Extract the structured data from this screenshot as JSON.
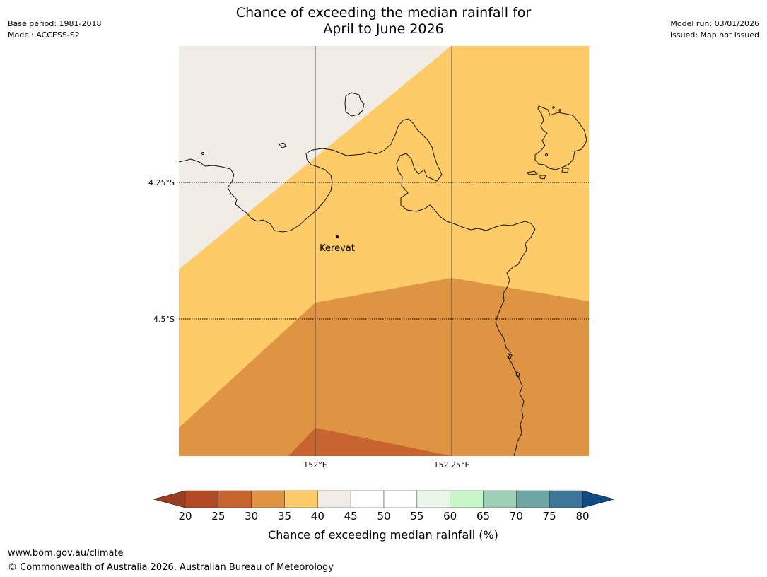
{
  "title": {
    "line1": "Chance of exceeding the median rainfall for",
    "line2": "April to June 2026"
  },
  "meta_left": {
    "base_period": "Base period: 1981-2018",
    "model": "Model: ACCESS-S2"
  },
  "meta_right": {
    "model_run": "Model run: 03/01/2026",
    "issued": "Issued: Map not issued"
  },
  "map": {
    "lat_labels": [
      "4.25°S",
      "4.5°S"
    ],
    "lon_labels": [
      "152°E",
      "152.25°E"
    ],
    "place_label": "Kerevat",
    "zone_colors": {
      "c25_30": "#c8642f",
      "c30_35": "#df9444",
      "c35_40": "#fdcb68",
      "c40_45": "#f1ece6"
    }
  },
  "colorbar": {
    "ticks": [
      "20",
      "25",
      "30",
      "35",
      "40",
      "45",
      "50",
      "55",
      "60",
      "65",
      "70",
      "75",
      "80"
    ],
    "under_color": "#9b3d21",
    "over_color": "#0f4c86",
    "bin_colors": [
      "#b14a24",
      "#c8642f",
      "#df9444",
      "#fdcb68",
      "#f1ece6",
      "#ffffff",
      "#ffffff",
      "#eaf6ea",
      "#c8f6c8",
      "#9dd0b6",
      "#6ea6a6",
      "#3e7698"
    ],
    "label": "Chance of exceeding median rainfall (%)"
  },
  "footer": {
    "url": "www.bom.gov.au/climate",
    "copyright": "© Commonwealth of Australia 2026, Australian Bureau of Meteorology"
  }
}
